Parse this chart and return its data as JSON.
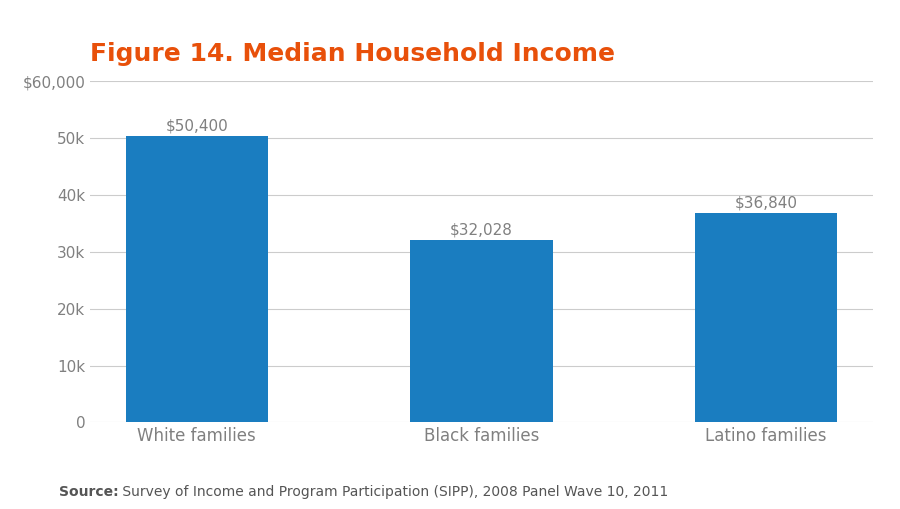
{
  "title": "Figure 14. Median Household Income",
  "title_color": "#E8500A",
  "title_fontsize": 18,
  "title_fontweight": "bold",
  "categories": [
    "White families",
    "Black families",
    "Latino families"
  ],
  "values": [
    50400,
    32028,
    36840
  ],
  "bar_labels": [
    "$50,400",
    "$32,028",
    "$36,840"
  ],
  "bar_color": "#1A7DC0",
  "ylim": [
    0,
    60000
  ],
  "yticks": [
    0,
    10000,
    20000,
    30000,
    40000,
    50000,
    60000
  ],
  "grid_color": "#CCCCCC",
  "background_color": "#FFFFFF",
  "tick_label_color": "#808080",
  "bar_label_color": "#808080",
  "bar_label_fontsize": 11,
  "xtick_fontsize": 12,
  "ytick_fontsize": 11,
  "source_text": "Source: Survey of Income and Program Participation (SIPP), 2008 Panel Wave 10, 2011",
  "source_bold": "Source:",
  "source_fontsize": 10,
  "source_color": "#555555"
}
